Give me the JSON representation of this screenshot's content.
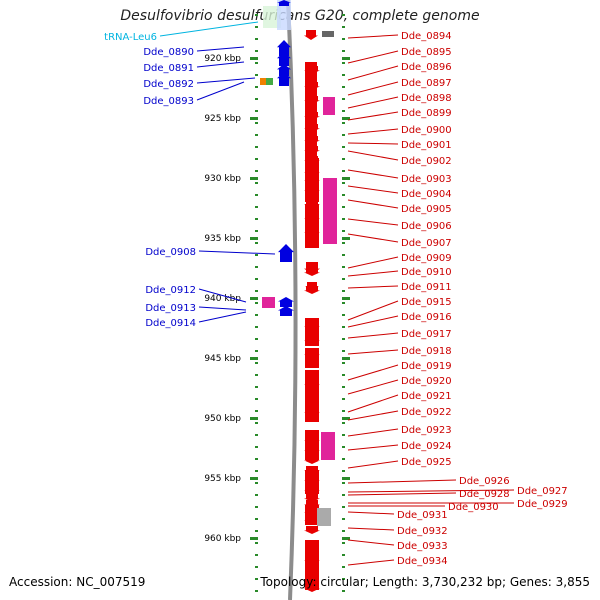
{
  "title": "Desulfovibrio desulfuricans G20, complete genome",
  "footer": {
    "accession": "Accession: NC_007519",
    "summary": "Topology: circular; Length: 3,730,232 bp; Genes: 3,855"
  },
  "colors": {
    "forward_gene": "#e80000",
    "reverse_gene": "#0000e0",
    "pseudo_or_rna": "#e0249a",
    "trna": "#00b4e0",
    "unknown": "#aaaaaa",
    "tick": "#2a8a2a",
    "left_labels": "#0000cc",
    "right_labels": "#cc0000"
  },
  "axis": {
    "ticks": [
      {
        "label": "920 kbp",
        "kbp": 920
      },
      {
        "label": "925 kbp",
        "kbp": 925
      },
      {
        "label": "930 kbp",
        "kbp": 930
      },
      {
        "label": "935 kbp",
        "kbp": 935
      },
      {
        "label": "940 kbp",
        "kbp": 940
      },
      {
        "label": "945 kbp",
        "kbp": 945
      },
      {
        "label": "950 kbp",
        "kbp": 950
      },
      {
        "label": "955 kbp",
        "kbp": 955
      },
      {
        "label": "960 kbp",
        "kbp": 960
      }
    ]
  },
  "left_labels": [
    {
      "text": "tRNA-Leu6",
      "kind": "trna"
    },
    {
      "text": "Dde_0890",
      "kind": "gene"
    },
    {
      "text": "Dde_0891",
      "kind": "gene"
    },
    {
      "text": "Dde_0892",
      "kind": "gene"
    },
    {
      "text": "Dde_0893",
      "kind": "gene"
    },
    {
      "text": "Dde_0908",
      "kind": "gene"
    },
    {
      "text": "Dde_0912",
      "kind": "gene"
    },
    {
      "text": "Dde_0913",
      "kind": "gene"
    },
    {
      "text": "Dde_0914",
      "kind": "gene"
    }
  ],
  "right_labels": [
    "Dde_0894",
    "Dde_0895",
    "Dde_0896",
    "Dde_0897",
    "Dde_0898",
    "Dde_0899",
    "Dde_0900",
    "Dde_0901",
    "Dde_0902",
    "Dde_0903",
    "Dde_0904",
    "Dde_0905",
    "Dde_0906",
    "Dde_0907",
    "Dde_0909",
    "Dde_0910",
    "Dde_0911",
    "Dde_0915",
    "Dde_0916",
    "Dde_0917",
    "Dde_0918",
    "Dde_0919",
    "Dde_0920",
    "Dde_0921",
    "Dde_0922",
    "Dde_0923",
    "Dde_0924",
    "Dde_0925",
    "Dde_0926",
    "Dde_0927",
    "Dde_0928",
    "Dde_0929",
    "Dde_0930",
    "Dde_0931",
    "Dde_0932",
    "Dde_0933",
    "Dde_0934"
  ]
}
